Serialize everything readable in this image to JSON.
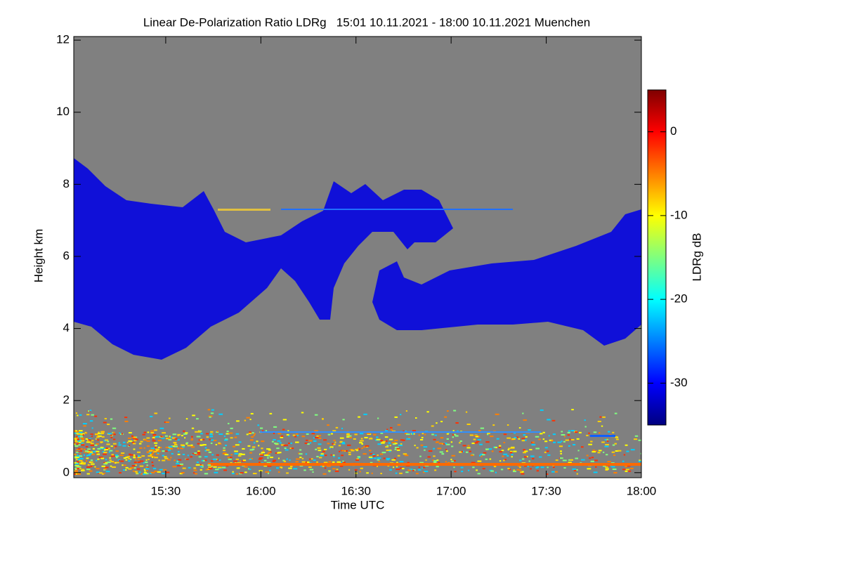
{
  "chart_data": {
    "type": "heatmap",
    "title": "Linear De-Polarization Ratio LDRg   15:01 10.11.2021 - 18:00 10.11.2021 Muenchen",
    "xlabel": "Time UTC",
    "ylabel": "Height km",
    "colorbar_label": "LDRg dB",
    "xlim": [
      15.0167,
      18.0
    ],
    "xticks": [
      {
        "value": 15.5,
        "label": "15:30"
      },
      {
        "value": 16.0,
        "label": "16:00"
      },
      {
        "value": 16.5,
        "label": "16:30"
      },
      {
        "value": 17.0,
        "label": "17:00"
      },
      {
        "value": 17.5,
        "label": "17:30"
      },
      {
        "value": 18.0,
        "label": "18:00"
      }
    ],
    "ylim": [
      -0.14,
      12.1
    ],
    "yticks": [
      0,
      2,
      4,
      6,
      8,
      10,
      12
    ],
    "clim": [
      -35,
      5
    ],
    "cticks": [
      0,
      -10,
      -20,
      -30
    ],
    "colormap": [
      "#00007f",
      "#0000ff",
      "#007fff",
      "#00ffff",
      "#7fff7f",
      "#ffff00",
      "#ff7f00",
      "#ff0000",
      "#7f0000"
    ],
    "background_color": "#808080"
  }
}
